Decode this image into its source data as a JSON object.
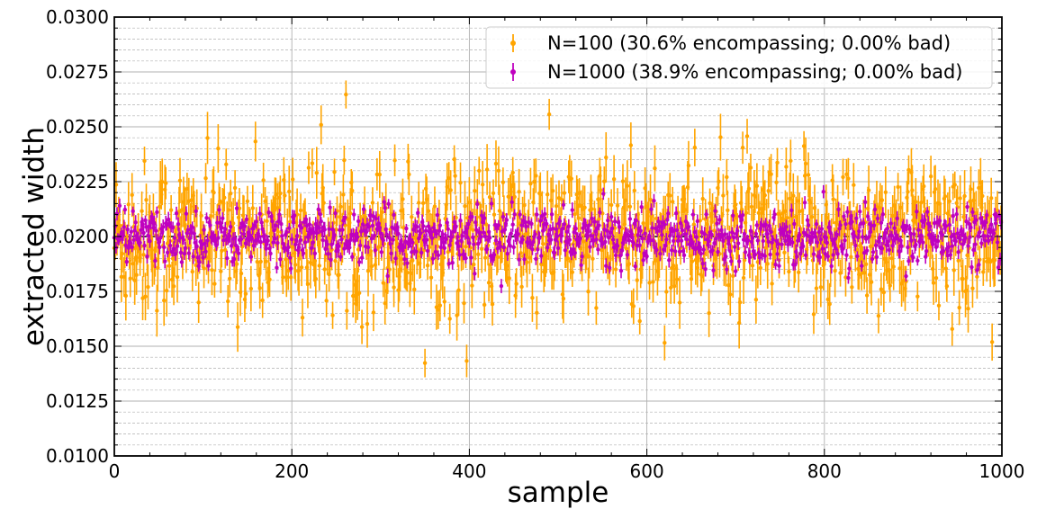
{
  "chart_data": {
    "type": "scatter",
    "xlabel": "sample",
    "ylabel": "extracted width",
    "xlim": [
      0,
      1000
    ],
    "ylim": [
      0.01,
      0.03
    ],
    "x_ticks": [
      "0",
      "200",
      "400",
      "600",
      "800",
      "1000"
    ],
    "y_ticks": [
      "0.0100",
      "0.0125",
      "0.0150",
      "0.0175",
      "0.0200",
      "0.0225",
      "0.0250",
      "0.0275",
      "0.0300"
    ],
    "grid": true,
    "legend_placement": "top-right",
    "reference_line": {
      "y": 0.02,
      "style": "dashed",
      "color": "#000000"
    },
    "series": [
      {
        "name": "N=100 (30.6% encompassing; 0.00% bad)",
        "color": "#FFA500",
        "n_points": 1000,
        "center": 0.02,
        "spread": 0.0017,
        "error_range": [
          0.0006,
          0.0012
        ],
        "marker": "circle"
      },
      {
        "name": "N=1000 (38.9% encompassing; 0.00% bad)",
        "color": "#BF00BF",
        "n_points": 1000,
        "center": 0.02,
        "spread": 0.0006,
        "error_range": [
          0.0002,
          0.00035
        ],
        "marker": "circle"
      }
    ]
  }
}
